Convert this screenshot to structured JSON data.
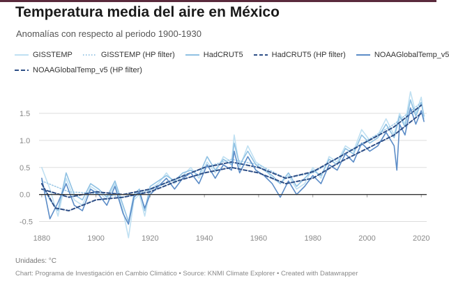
{
  "header": {
    "title": "Temperatura media del aire en México",
    "subtitle": "Anomalías con respecto al periodo 1900-1930"
  },
  "footer": {
    "units": "Unidades: °C",
    "source": "Chart: Programa de Investigación en Cambio Climático • Source: KNMI Climate Explorer • Created with Datawrapper"
  },
  "colors": {
    "gisstemp": "#bfe0f2",
    "hadcrut": "#8fc1e3",
    "noaa": "#5b8cc7",
    "noaa_hp": "#2d4e86",
    "zero_line": "#333333",
    "grid": "#dddddd"
  },
  "chart_data": {
    "type": "line",
    "title": "Temperatura media del aire en México",
    "subtitle": "Anomalías con respecto al periodo 1900-1930",
    "xlabel": "",
    "ylabel": "",
    "units": "°C",
    "xlim": [
      1879,
      2022
    ],
    "ylim": [
      -0.75,
      1.95
    ],
    "x_ticks": [
      1880,
      1900,
      1920,
      1940,
      1960,
      1980,
      2000,
      2020
    ],
    "y_ticks": [
      -0.5,
      0.0,
      0.5,
      1.0,
      1.5
    ],
    "y_tick_labels": [
      "-0.5",
      "0.0",
      "0.5",
      "1.0",
      "1.5"
    ],
    "legend_placement": "top",
    "series": [
      {
        "name": "GISSTEMP",
        "style": "solid",
        "color_key": "gisstemp",
        "points": [
          [
            1880,
            0.5
          ],
          [
            1883,
            0.1
          ],
          [
            1886,
            -0.4
          ],
          [
            1889,
            0.3
          ],
          [
            1892,
            -0.1
          ],
          [
            1895,
            -0.2
          ],
          [
            1898,
            0.15
          ],
          [
            1901,
            0.05
          ],
          [
            1904,
            -0.1
          ],
          [
            1907,
            0.2
          ],
          [
            1910,
            -0.3
          ],
          [
            1912,
            -0.8
          ],
          [
            1914,
            -0.1
          ],
          [
            1916,
            0.0
          ],
          [
            1918,
            -0.4
          ],
          [
            1920,
            0.1
          ],
          [
            1923,
            0.2
          ],
          [
            1926,
            0.4
          ],
          [
            1929,
            0.2
          ],
          [
            1932,
            0.35
          ],
          [
            1935,
            0.5
          ],
          [
            1938,
            0.3
          ],
          [
            1941,
            0.6
          ],
          [
            1944,
            0.4
          ],
          [
            1947,
            0.7
          ],
          [
            1950,
            0.6
          ],
          [
            1951,
            1.1
          ],
          [
            1953,
            0.5
          ],
          [
            1956,
            0.9
          ],
          [
            1959,
            0.6
          ],
          [
            1962,
            0.5
          ],
          [
            1965,
            0.3
          ],
          [
            1968,
            0.2
          ],
          [
            1971,
            0.35
          ],
          [
            1974,
            0.1
          ],
          [
            1977,
            0.2
          ],
          [
            1980,
            0.5
          ],
          [
            1983,
            0.3
          ],
          [
            1986,
            0.7
          ],
          [
            1989,
            0.6
          ],
          [
            1992,
            0.9
          ],
          [
            1995,
            0.8
          ],
          [
            1998,
            1.2
          ],
          [
            2001,
            1.0
          ],
          [
            2004,
            1.1
          ],
          [
            2007,
            1.4
          ],
          [
            2010,
            1.1
          ],
          [
            2012,
            1.5
          ],
          [
            2014,
            1.3
          ],
          [
            2016,
            1.9
          ],
          [
            2018,
            1.5
          ],
          [
            2020,
            1.8
          ],
          [
            2021,
            1.4
          ]
        ]
      },
      {
        "name": "GISSTEMP (HP filter)",
        "style": "dotted",
        "color_key": "gisstemp",
        "points": [
          [
            1880,
            0.25
          ],
          [
            1890,
            0.05
          ],
          [
            1900,
            0.02
          ],
          [
            1910,
            -0.05
          ],
          [
            1920,
            0.08
          ],
          [
            1930,
            0.3
          ],
          [
            1940,
            0.5
          ],
          [
            1950,
            0.65
          ],
          [
            1960,
            0.55
          ],
          [
            1970,
            0.3
          ],
          [
            1980,
            0.4
          ],
          [
            1990,
            0.7
          ],
          [
            2000,
            1.0
          ],
          [
            2010,
            1.3
          ],
          [
            2020,
            1.7
          ]
        ]
      },
      {
        "name": "HadCRUT5",
        "style": "solid",
        "color_key": "hadcrut",
        "points": [
          [
            1880,
            0.2
          ],
          [
            1883,
            -0.1
          ],
          [
            1886,
            -0.3
          ],
          [
            1889,
            0.4
          ],
          [
            1892,
            0.0
          ],
          [
            1895,
            -0.1
          ],
          [
            1898,
            0.2
          ],
          [
            1901,
            0.1
          ],
          [
            1904,
            -0.05
          ],
          [
            1907,
            0.25
          ],
          [
            1910,
            -0.2
          ],
          [
            1912,
            -0.5
          ],
          [
            1914,
            0.0
          ],
          [
            1916,
            0.1
          ],
          [
            1918,
            -0.3
          ],
          [
            1920,
            0.15
          ],
          [
            1923,
            0.25
          ],
          [
            1926,
            0.35
          ],
          [
            1929,
            0.25
          ],
          [
            1932,
            0.4
          ],
          [
            1935,
            0.45
          ],
          [
            1938,
            0.35
          ],
          [
            1941,
            0.7
          ],
          [
            1944,
            0.45
          ],
          [
            1947,
            0.65
          ],
          [
            1950,
            0.55
          ],
          [
            1951,
            0.95
          ],
          [
            1953,
            0.55
          ],
          [
            1956,
            0.8
          ],
          [
            1959,
            0.55
          ],
          [
            1962,
            0.45
          ],
          [
            1965,
            0.35
          ],
          [
            1968,
            0.2
          ],
          [
            1971,
            0.4
          ],
          [
            1974,
            0.15
          ],
          [
            1977,
            0.3
          ],
          [
            1980,
            0.45
          ],
          [
            1983,
            0.35
          ],
          [
            1986,
            0.65
          ],
          [
            1989,
            0.55
          ],
          [
            1992,
            0.85
          ],
          [
            1995,
            0.75
          ],
          [
            1998,
            1.1
          ],
          [
            2001,
            0.95
          ],
          [
            2004,
            1.05
          ],
          [
            2007,
            1.3
          ],
          [
            2010,
            1.05
          ],
          [
            2012,
            1.45
          ],
          [
            2014,
            1.25
          ],
          [
            2016,
            1.75
          ],
          [
            2018,
            1.45
          ],
          [
            2020,
            1.7
          ],
          [
            2021,
            1.45
          ]
        ]
      },
      {
        "name": "HadCRUT5 (HP filter)",
        "style": "dashed",
        "color_key": "noaa_hp",
        "points": [
          [
            1880,
            0.1
          ],
          [
            1890,
            -0.05
          ],
          [
            1900,
            0.05
          ],
          [
            1910,
            0.0
          ],
          [
            1920,
            0.1
          ],
          [
            1930,
            0.3
          ],
          [
            1940,
            0.5
          ],
          [
            1950,
            0.6
          ],
          [
            1960,
            0.5
          ],
          [
            1970,
            0.3
          ],
          [
            1980,
            0.42
          ],
          [
            1990,
            0.7
          ],
          [
            2000,
            0.98
          ],
          [
            2010,
            1.25
          ],
          [
            2020,
            1.65
          ]
        ]
      },
      {
        "name": "NOAAGlobalTemp_v5",
        "style": "solid",
        "color_key": "noaa",
        "points": [
          [
            1880,
            0.3
          ],
          [
            1883,
            -0.45
          ],
          [
            1886,
            -0.15
          ],
          [
            1889,
            0.2
          ],
          [
            1892,
            -0.2
          ],
          [
            1895,
            -0.3
          ],
          [
            1898,
            0.1
          ],
          [
            1901,
            0.0
          ],
          [
            1904,
            -0.2
          ],
          [
            1907,
            0.15
          ],
          [
            1910,
            -0.35
          ],
          [
            1912,
            -0.55
          ],
          [
            1914,
            -0.05
          ],
          [
            1916,
            0.05
          ],
          [
            1918,
            -0.25
          ],
          [
            1920,
            0.0
          ],
          [
            1923,
            0.15
          ],
          [
            1926,
            0.3
          ],
          [
            1929,
            0.1
          ],
          [
            1932,
            0.3
          ],
          [
            1935,
            0.4
          ],
          [
            1938,
            0.2
          ],
          [
            1941,
            0.55
          ],
          [
            1944,
            0.3
          ],
          [
            1947,
            0.55
          ],
          [
            1950,
            0.45
          ],
          [
            1951,
            0.8
          ],
          [
            1953,
            0.4
          ],
          [
            1956,
            0.7
          ],
          [
            1959,
            0.45
          ],
          [
            1962,
            0.35
          ],
          [
            1965,
            0.2
          ],
          [
            1968,
            -0.05
          ],
          [
            1971,
            0.25
          ],
          [
            1974,
            0.0
          ],
          [
            1977,
            0.15
          ],
          [
            1980,
            0.35
          ],
          [
            1983,
            0.2
          ],
          [
            1986,
            0.55
          ],
          [
            1989,
            0.45
          ],
          [
            1992,
            0.75
          ],
          [
            1995,
            0.6
          ],
          [
            1998,
            0.95
          ],
          [
            2001,
            0.8
          ],
          [
            2004,
            0.9
          ],
          [
            2007,
            1.15
          ],
          [
            2010,
            0.9
          ],
          [
            2011,
            0.45
          ],
          [
            2012,
            1.3
          ],
          [
            2014,
            1.1
          ],
          [
            2016,
            1.6
          ],
          [
            2018,
            1.3
          ],
          [
            2020,
            1.55
          ],
          [
            2021,
            1.35
          ]
        ]
      },
      {
        "name": "NOAAGlobalTemp_v5 (HP filter)",
        "style": "dashed",
        "color_key": "noaa_hp",
        "points": [
          [
            1880,
            0.2
          ],
          [
            1885,
            -0.25
          ],
          [
            1890,
            -0.3
          ],
          [
            1895,
            -0.2
          ],
          [
            1900,
            -0.1
          ],
          [
            1910,
            -0.05
          ],
          [
            1920,
            0.05
          ],
          [
            1930,
            0.25
          ],
          [
            1940,
            0.4
          ],
          [
            1950,
            0.5
          ],
          [
            1960,
            0.4
          ],
          [
            1970,
            0.2
          ],
          [
            1980,
            0.3
          ],
          [
            1990,
            0.6
          ],
          [
            2000,
            0.85
          ],
          [
            2010,
            1.1
          ],
          [
            2020,
            1.5
          ]
        ]
      }
    ]
  }
}
